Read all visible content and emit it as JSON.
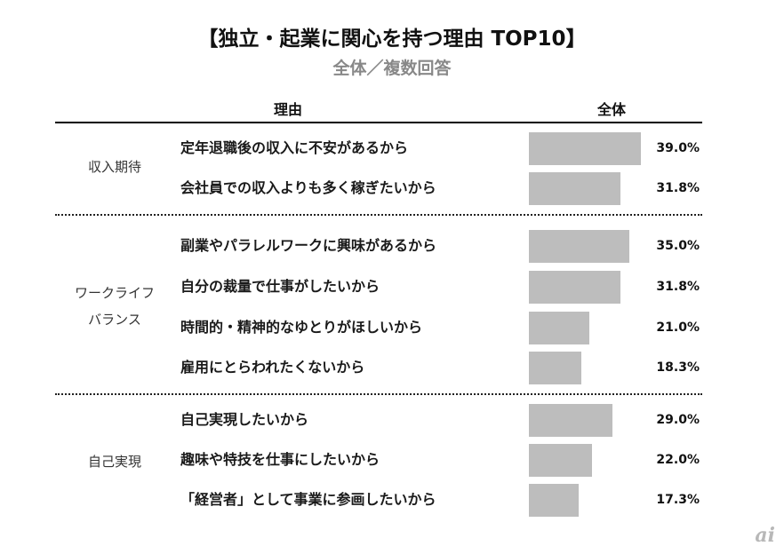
{
  "title": "【独立・起業に関心を持つ理由 TOP10】",
  "subtitle": "全体／複数回答",
  "logo": "ai",
  "colors": {
    "bar": "#bdbdbd",
    "subtitle": "#888888"
  },
  "chart_data": {
    "type": "bar",
    "orientation": "horizontal",
    "columns": {
      "reason": "理由",
      "total": "全体"
    },
    "groups": [
      {
        "label": [
          "収入期待"
        ],
        "rows": [
          0,
          1
        ]
      },
      {
        "label": [
          "ワークライフ",
          "バランス"
        ],
        "rows": [
          2,
          3,
          4,
          5
        ]
      },
      {
        "label": [
          "自己実現"
        ],
        "rows": [
          6,
          7,
          8
        ]
      }
    ],
    "categories": [
      "定年退職後の収入に不安があるから",
      "会社員での収入よりも多く稼ぎたいから",
      "副業やパラレルワークに興味があるから",
      "自分の裁量で仕事がしたいから",
      "時間的・精神的なゆとりがほしいから",
      "雇用にとらわれたくないから",
      "自己実現したいから",
      "趣味や特技を仕事にしたいから",
      "「経営者」として事業に参画したいから"
    ],
    "values": [
      39.0,
      31.8,
      35.0,
      31.8,
      21.0,
      18.3,
      29.0,
      22.0,
      17.3
    ],
    "value_labels": [
      "39.0%",
      "31.8%",
      "35.0%",
      "31.8%",
      "21.0%",
      "18.3%",
      "29.0%",
      "22.0%",
      "17.3%"
    ],
    "xlim": [
      0,
      39.0
    ]
  }
}
